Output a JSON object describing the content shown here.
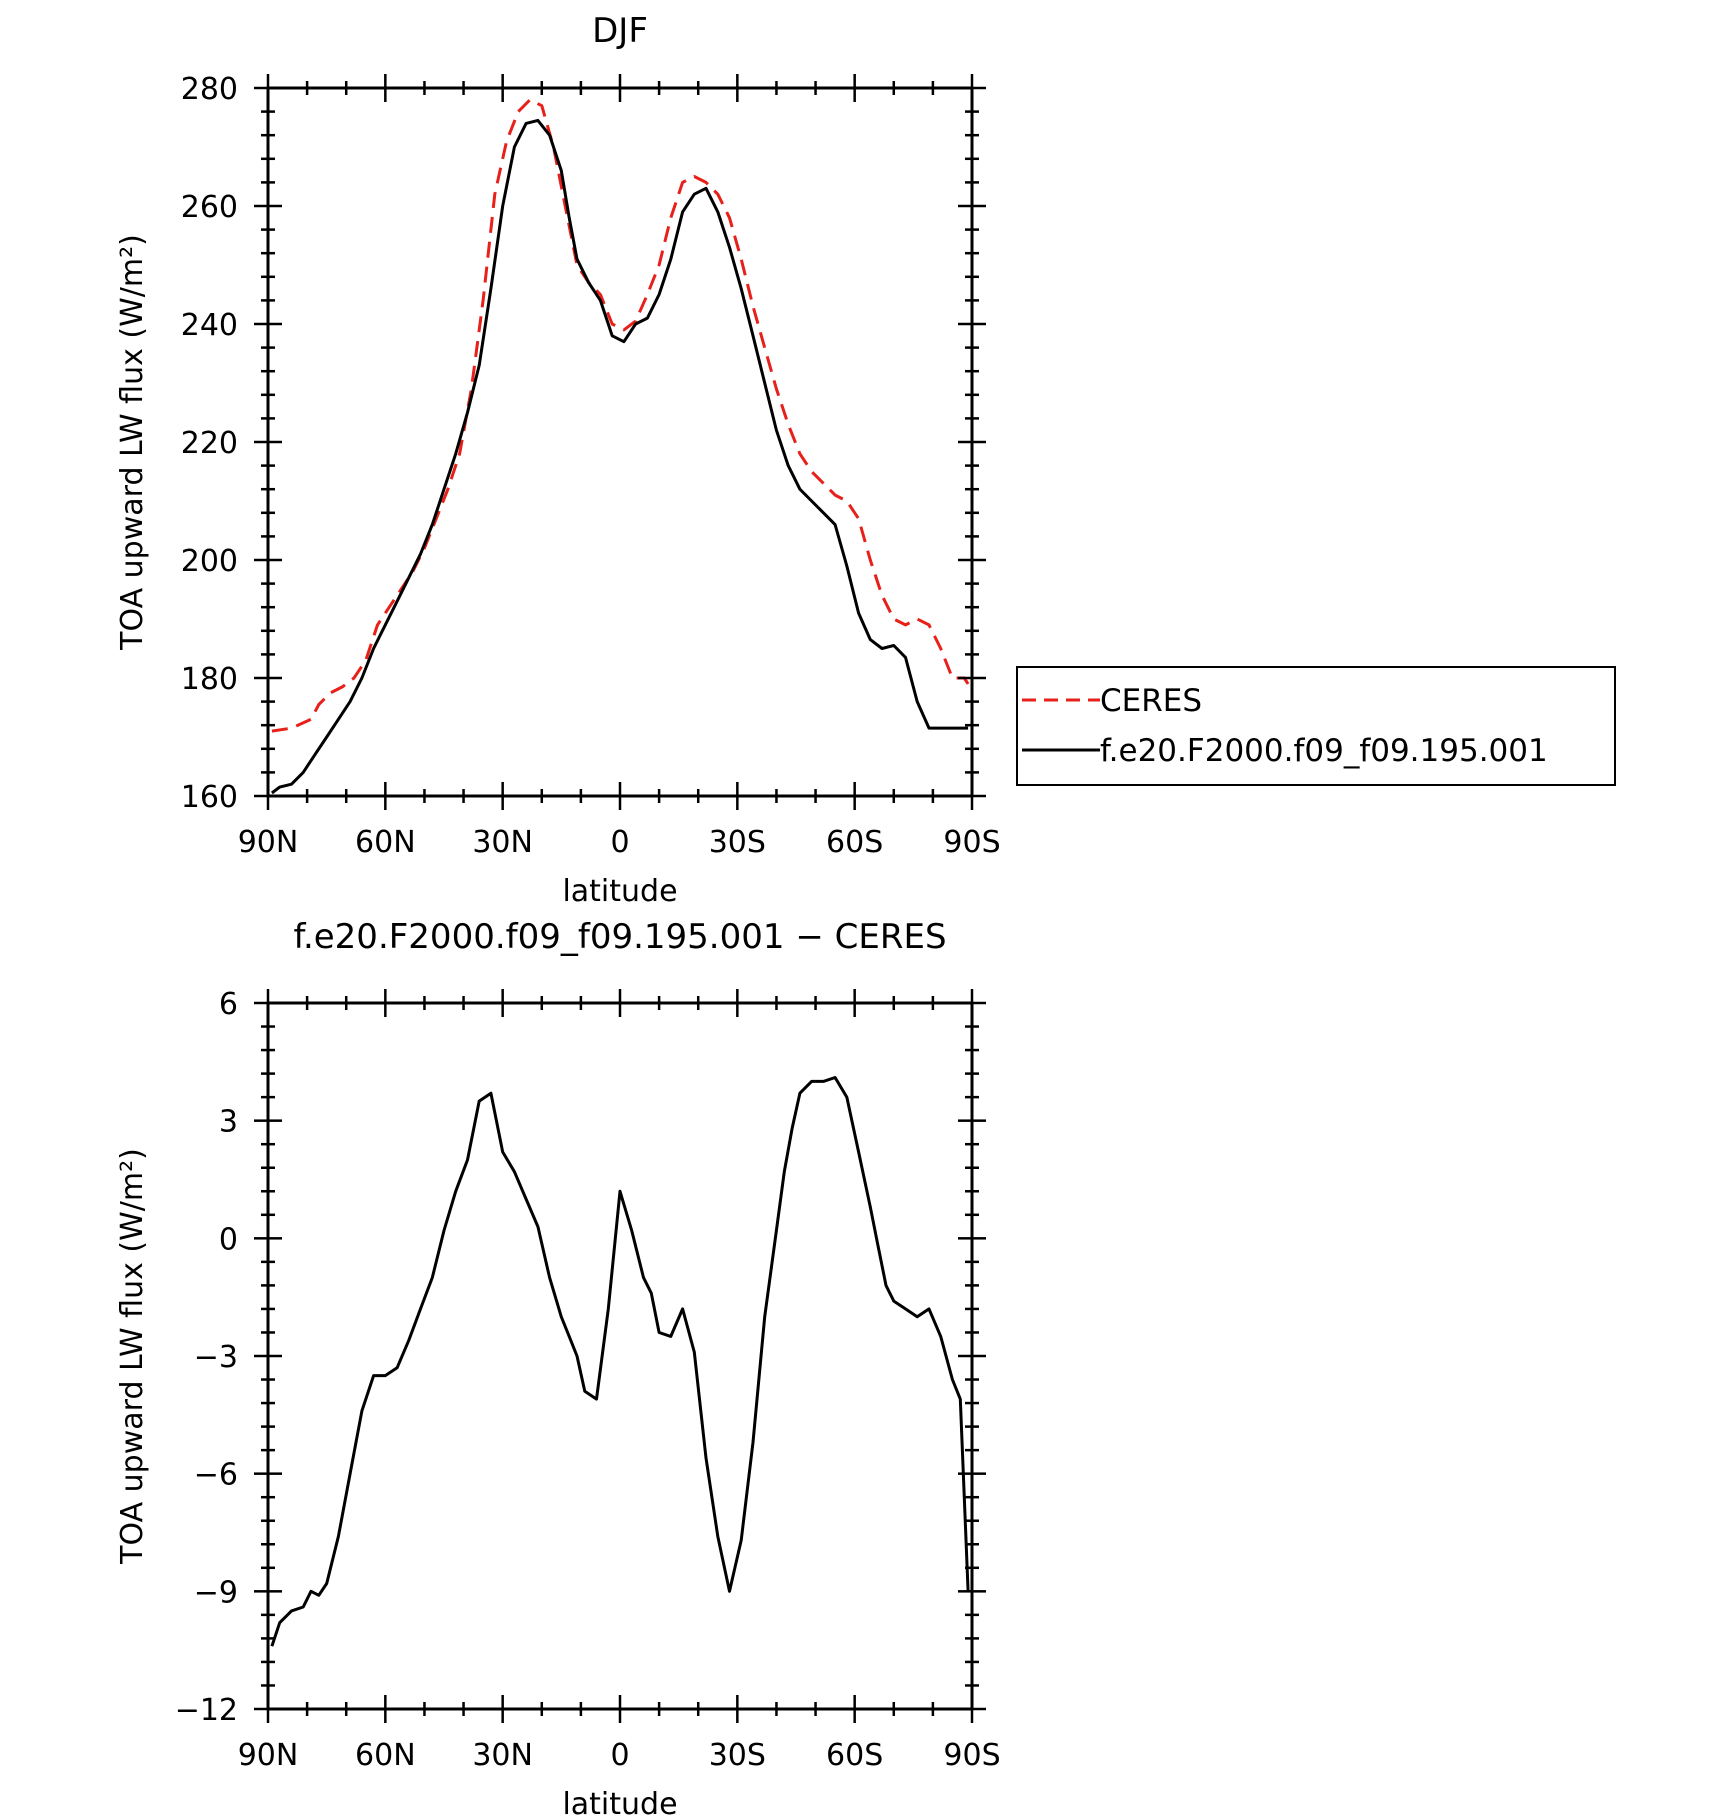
{
  "chart_data": [
    {
      "type": "line",
      "title": "DJF",
      "xlabel": "latitude",
      "ylabel": "TOA upward LW flux (W/m²)",
      "xlim": [
        -90,
        90
      ],
      "ylim": [
        160,
        280
      ],
      "x_ticks": [
        -90,
        -60,
        -30,
        0,
        30,
        60,
        90
      ],
      "x_tick_labels": [
        "90N",
        "60N",
        "30N",
        "0",
        "30S",
        "60S",
        "90S"
      ],
      "y_ticks": [
        160,
        180,
        200,
        220,
        240,
        260,
        280
      ],
      "y_tick_labels": [
        "160",
        "180",
        "200",
        "220",
        "240",
        "260",
        "280"
      ],
      "grid": false,
      "legend": {
        "position": "right, outside plot",
        "entries": [
          "CERES",
          "f.e20.F2000.f09_f09.195.001"
        ]
      },
      "series": [
        {
          "name": "CERES",
          "color": "#e8201a",
          "dash": true,
          "x": [
            -89,
            -84,
            -79,
            -77,
            -74,
            -71,
            -68,
            -65,
            -62,
            -59,
            -56,
            -53,
            -50,
            -47,
            -44,
            -41,
            -38,
            -35,
            -32,
            -29,
            -26,
            -23,
            -20,
            -17,
            -14,
            -11,
            -8,
            -5,
            -2,
            1,
            4,
            7,
            10,
            13,
            16,
            19,
            22,
            25,
            28,
            31,
            34,
            37,
            40,
            43,
            46,
            49,
            52,
            55,
            58,
            61,
            64,
            67,
            70,
            73,
            76,
            79,
            82,
            85,
            88,
            89
          ],
          "y": [
            171,
            171.5,
            173,
            175.5,
            177.5,
            178.5,
            180,
            183,
            189,
            192,
            195,
            198,
            202,
            207,
            212,
            218,
            229,
            244,
            262,
            271,
            276,
            278,
            277,
            270,
            260,
            250,
            247,
            245,
            240,
            239,
            240.5,
            245,
            250,
            258,
            264,
            265,
            264,
            262,
            258,
            251,
            243,
            236,
            229,
            223,
            218,
            215,
            213,
            211,
            210,
            207,
            200,
            194,
            190,
            189,
            190,
            189,
            185,
            180,
            180,
            179
          ]
        },
        {
          "name": "f.e20.F2000.f09_f09.195.001",
          "color": "#000000",
          "dash": false,
          "x": [
            -89,
            -87,
            -84,
            -81,
            -78,
            -75,
            -72,
            -69,
            -66,
            -63,
            -60,
            -57,
            -54,
            -51,
            -48,
            -45,
            -42,
            -39,
            -36,
            -33,
            -30,
            -27,
            -24,
            -21,
            -18,
            -15,
            -13,
            -11,
            -8,
            -5,
            -2,
            1,
            4,
            7,
            10,
            13,
            16,
            19,
            22,
            25,
            28,
            31,
            34,
            37,
            40,
            43,
            46,
            49,
            52,
            55,
            58,
            61,
            64,
            67,
            70,
            73,
            76,
            79,
            82,
            85,
            87,
            89
          ],
          "y": [
            160.5,
            161.5,
            162,
            164,
            167,
            170,
            173,
            176,
            180,
            185,
            189,
            193,
            197,
            201,
            206,
            212,
            218,
            225,
            233,
            246,
            260,
            270,
            274,
            274.5,
            272,
            266,
            258,
            251,
            247,
            244,
            238,
            237,
            240,
            241,
            245,
            251,
            259,
            262,
            263,
            259,
            253,
            246,
            238,
            230,
            222,
            216,
            212,
            210,
            208,
            206,
            199,
            191,
            186.5,
            185,
            185.5,
            183.5,
            176,
            171.5,
            171.5,
            171.5,
            171.5,
            171.5
          ]
        }
      ]
    },
    {
      "type": "line",
      "title": "f.e20.F2000.f09_f09.195.001 − CERES",
      "xlabel": "latitude",
      "ylabel": "TOA upward LW flux (W/m²)",
      "xlim": [
        -90,
        90
      ],
      "ylim": [
        -12,
        6
      ],
      "x_ticks": [
        -90,
        -60,
        -30,
        0,
        30,
        60,
        90
      ],
      "x_tick_labels": [
        "90N",
        "60N",
        "30N",
        "0",
        "30S",
        "60S",
        "90S"
      ],
      "y_ticks": [
        -12,
        -9,
        -6,
        -3,
        0,
        3,
        6
      ],
      "y_tick_labels": [
        "−12",
        "−9",
        "−6",
        "−3",
        "0",
        "3",
        "6"
      ],
      "grid": false,
      "series": [
        {
          "color": "#000000",
          "dash": false,
          "x": [
            -89,
            -87,
            -84,
            -81,
            -79,
            -77,
            -75,
            -72,
            -69,
            -66,
            -63,
            -60,
            -57,
            -54,
            -51,
            -48,
            -45,
            -42,
            -39,
            -36,
            -33,
            -30,
            -27,
            -24,
            -21,
            -18,
            -15,
            -13,
            -11,
            -9,
            -6,
            -3,
            0,
            3,
            6,
            8,
            10,
            13,
            16,
            19,
            22,
            25,
            28,
            31,
            34,
            37,
            40,
            42,
            44,
            46,
            49,
            52,
            55,
            58,
            61,
            64,
            66,
            68,
            70,
            73,
            76,
            79,
            82,
            85,
            87,
            89
          ],
          "y": [
            -10.4,
            -9.8,
            -9.5,
            -9.4,
            -9.0,
            -9.1,
            -8.8,
            -7.6,
            -6.0,
            -4.4,
            -3.5,
            -3.5,
            -3.3,
            -2.6,
            -1.8,
            -1.0,
            0.2,
            1.2,
            2.0,
            3.5,
            3.7,
            2.2,
            1.7,
            1.0,
            0.3,
            -1.0,
            -2.0,
            -2.5,
            -3.0,
            -3.9,
            -4.1,
            -1.8,
            1.2,
            0.2,
            -1.0,
            -1.4,
            -2.4,
            -2.5,
            -1.8,
            -2.9,
            -5.6,
            -7.6,
            -9.0,
            -7.7,
            -5.2,
            -2.0,
            0.2,
            1.7,
            2.8,
            3.7,
            4.0,
            4.0,
            4.1,
            3.6,
            2.2,
            0.8,
            -0.2,
            -1.2,
            -1.6,
            -1.8,
            -2.0,
            -1.8,
            -2.5,
            -3.6,
            -4.1,
            -9.0
          ]
        }
      ]
    }
  ]
}
